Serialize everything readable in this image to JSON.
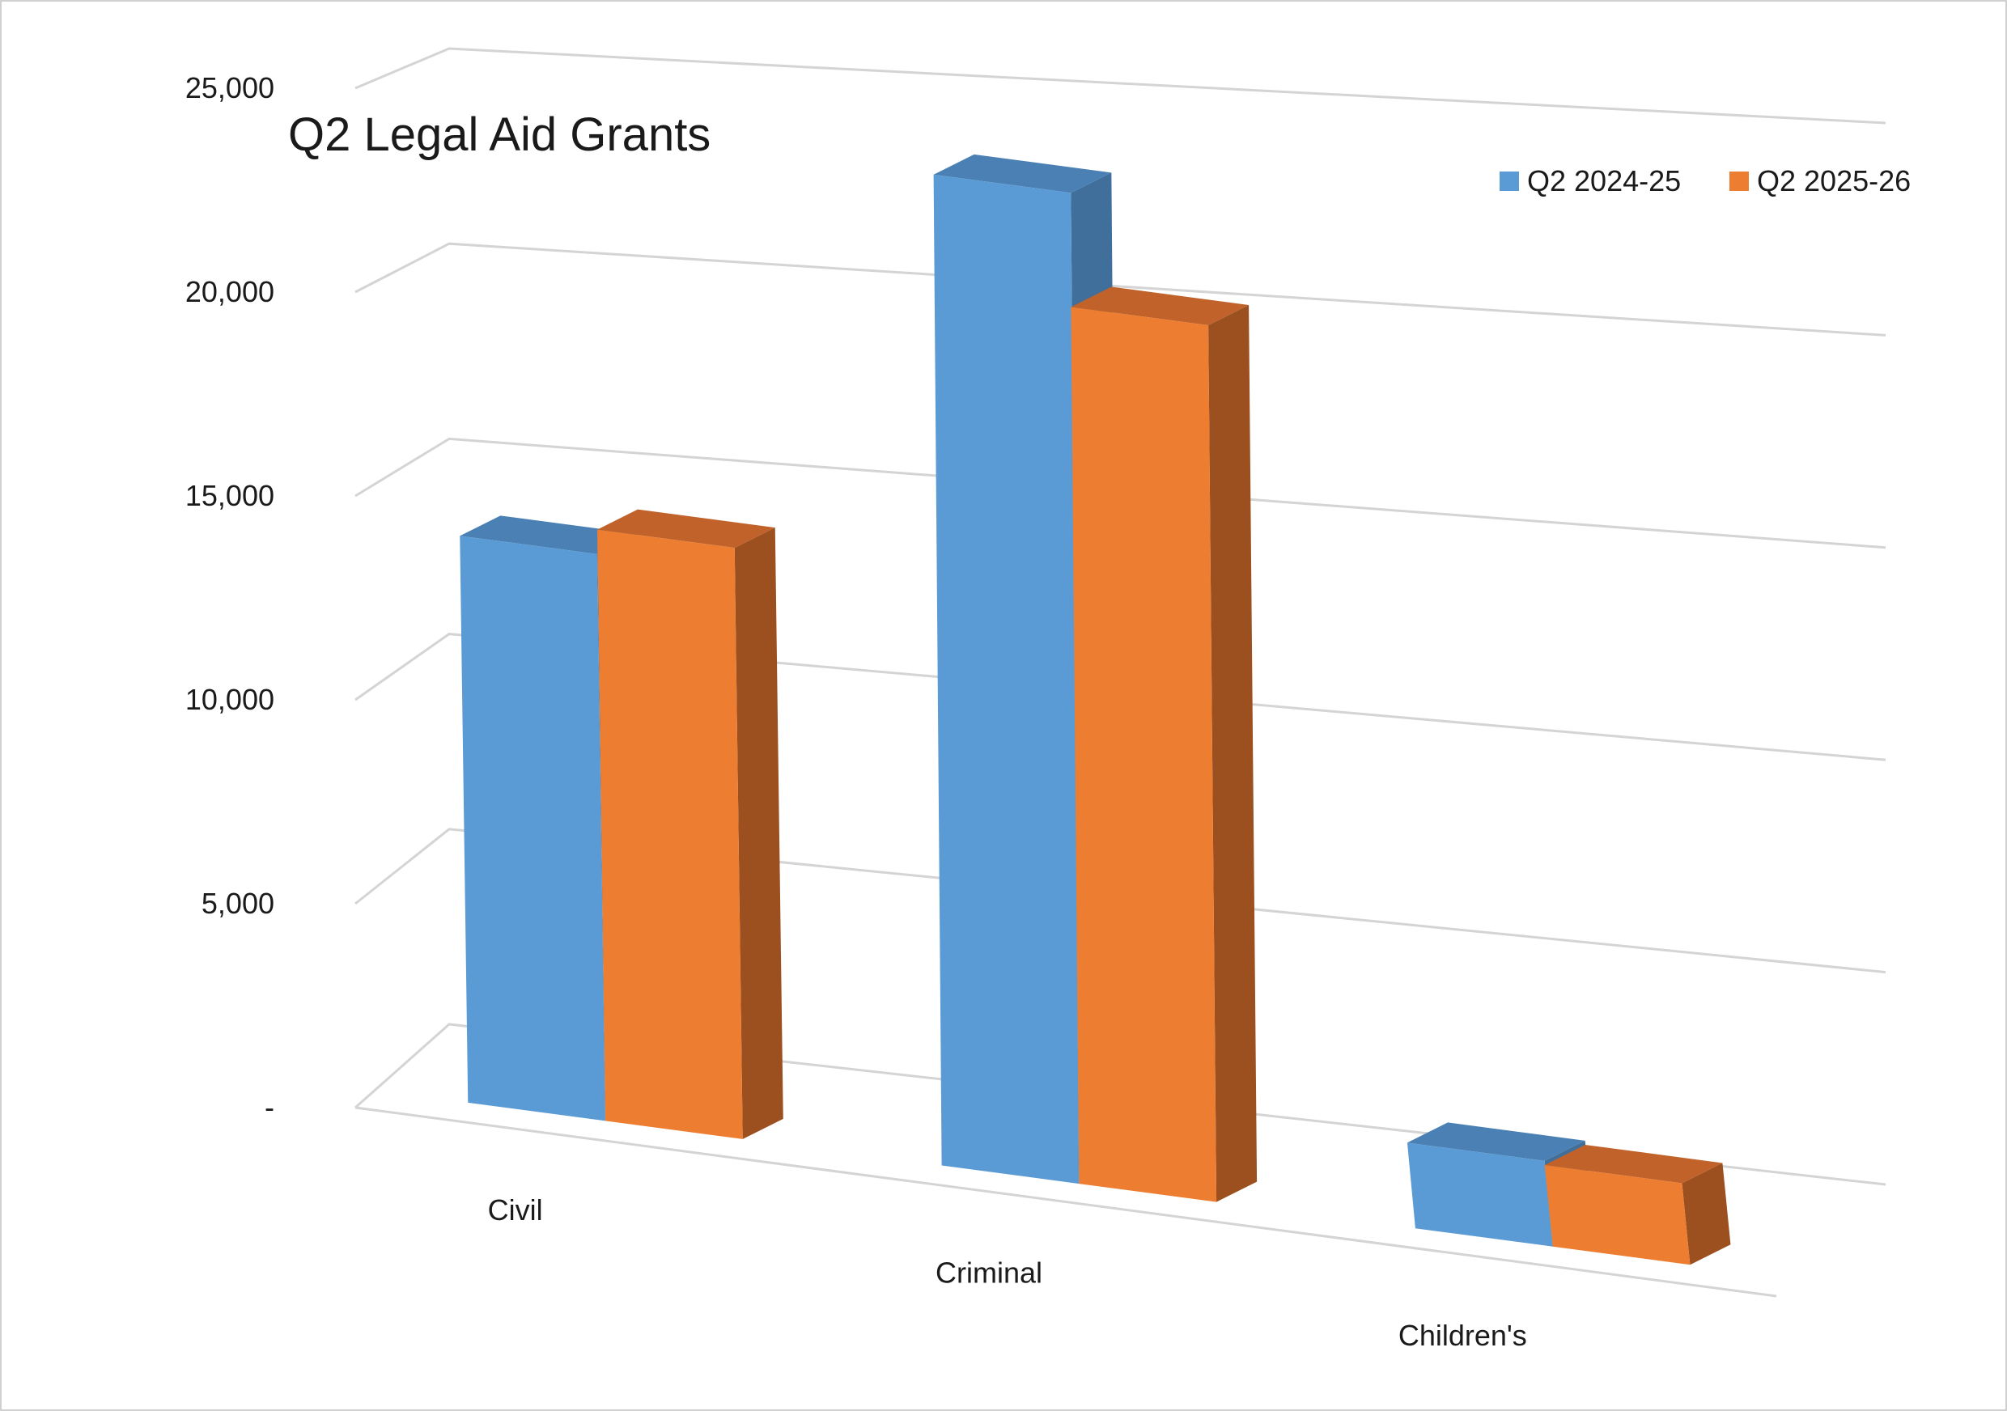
{
  "chart_data": {
    "type": "bar",
    "title": "Q2 Legal Aid Grants",
    "xlabel": "",
    "ylabel": "",
    "categories": [
      "Civil",
      "Criminal",
      "Children's"
    ],
    "series": [
      {
        "name": "Q2 2024-25",
        "values": [
          13900,
          24300,
          2100
        ],
        "color": "#5b9bd5",
        "side_color": "#3f6f9a",
        "top_color": "#4a80b3"
      },
      {
        "name": "Q2 2025-26",
        "values": [
          14500,
          21500,
          2000
        ],
        "color": "#ed7d31",
        "side_color": "#9c4f1f",
        "top_color": "#c0622a"
      }
    ],
    "ylim": [
      0,
      25000
    ],
    "yticks": [
      0,
      5000,
      10000,
      15000,
      20000,
      25000
    ],
    "ytick_labels": [
      "-",
      "5,000",
      "10,000",
      "15,000",
      "20,000",
      "25,000"
    ],
    "grid": true,
    "legend_position": "top-right",
    "projection": "3d-perspective"
  }
}
